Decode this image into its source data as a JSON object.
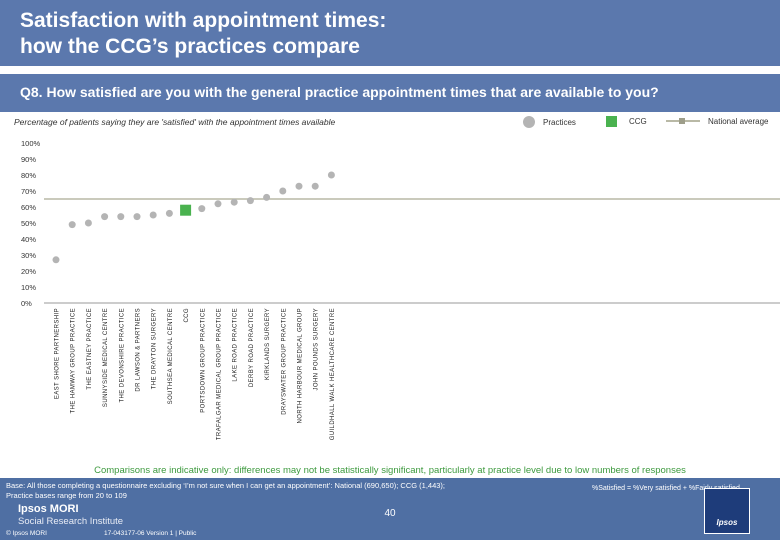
{
  "header": {
    "title_line1": "Satisfaction with appointment times:",
    "title_line2": "how the CCG’s practices compare",
    "question": "Q8. How satisfied are you with the general practice appointment times that are available to you?",
    "subtitle": "Percentage of patients saying they are 'satisfied' with the appointment times available"
  },
  "legend": {
    "practices": "Practices",
    "ccg": "CCG",
    "national": "National average"
  },
  "chart_data": {
    "type": "scatter",
    "title": "Percentage of patients saying they are 'satisfied' with the appointment times available",
    "xlabel": "",
    "ylabel": "",
    "ylim": [
      0,
      100
    ],
    "yticks": [
      "0%",
      "10%",
      "20%",
      "30%",
      "40%",
      "50%",
      "60%",
      "70%",
      "80%",
      "90%",
      "100%"
    ],
    "categories": [
      "EAST SHORE PARTNERSHIP",
      "THE HAMWAY GROUP PRACTICE",
      "THE EASTNEY PRACTICE",
      "SUNNYSIDE MEDICAL CENTRE",
      "THE DEVONSHIRE PRACTICE",
      "DR LAWSON & PARTNERS",
      "THE DRAYTON SURGERY",
      "SOUTHSEA MEDICAL CENTRE",
      "CCG",
      "PORTSDOWN GROUP PRACTICE",
      "TRAFALGAR MEDICAL GROUP PRACTICE",
      "LAKE ROAD PRACTICE",
      "DERBY ROAD PRACTICE",
      "KIRKLANDS SURGERY",
      "DRAYSWATER GROUP PRACTICE",
      "NORTH HARBOUR MEDICAL GROUP",
      "JOHN POUNDS SURGERY",
      "GUILDHALL WALK HEALTHCARE CENTRE"
    ],
    "values": [
      27,
      49,
      50,
      54,
      54,
      54,
      55,
      56,
      58,
      59,
      62,
      63,
      64,
      66,
      70,
      73,
      73,
      80
    ],
    "highlight_category": "CCG",
    "national_average": 65,
    "colors": {
      "practices": "#b4b4b4",
      "ccg": "#4ab24f",
      "national": "#b9b9a6",
      "axis": "#999999"
    }
  },
  "footer": {
    "comparisons": "Comparisons are indicative only: differences may not be statistically significant, particularly at practice level due to low numbers of responses",
    "base_line1": "Base: All those completing a questionnaire excluding ‘I’m not sure when I can get an appointment’: National (690,650); CCG (1,443);",
    "base_line2": "Practice bases range from 20 to 109",
    "satisfied_def": "%Satisfied = %Very satisfied + %Fairly satisfied",
    "logo_name": "Ipsos MORI",
    "logo_sub": "Social Research Institute",
    "copyright": "© Ipsos MORI",
    "job_ref": "17-043177-06 Version 1 | Public",
    "page_number": "40",
    "ipsos_logo_text": "Ipsos"
  }
}
